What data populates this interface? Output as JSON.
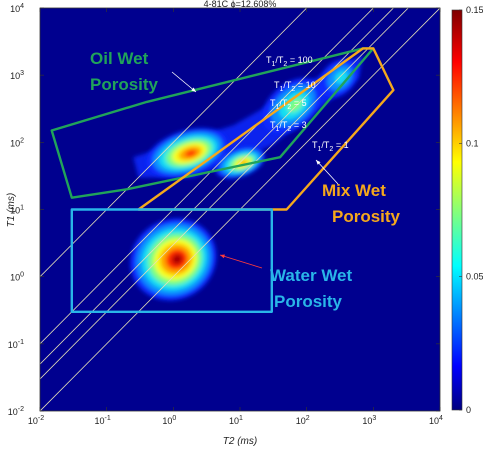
{
  "chart_data": {
    "type": "heatmap",
    "title": "4-81C ϕ=12.608%",
    "xlabel": "T2 (ms)",
    "ylabel": "T1 (ms)",
    "xscale": "log",
    "yscale": "log",
    "xlim": [
      0.01,
      10000
    ],
    "ylim": [
      0.01,
      10000
    ],
    "x_ticks": [
      {
        "value": 0.01,
        "base": "10",
        "exp": "-2"
      },
      {
        "value": 0.1,
        "base": "10",
        "exp": "-1"
      },
      {
        "value": 1,
        "base": "10",
        "exp": "0"
      },
      {
        "value": 10,
        "base": "10",
        "exp": "1"
      },
      {
        "value": 100,
        "base": "10",
        "exp": "2"
      },
      {
        "value": 1000,
        "base": "10",
        "exp": "3"
      },
      {
        "value": 10000,
        "base": "10",
        "exp": "4"
      }
    ],
    "y_ticks": [
      {
        "value": 0.01,
        "base": "10",
        "exp": "-2"
      },
      {
        "value": 0.1,
        "base": "10",
        "exp": "-1"
      },
      {
        "value": 1,
        "base": "10",
        "exp": "0"
      },
      {
        "value": 10,
        "base": "10",
        "exp": "1"
      },
      {
        "value": 100,
        "base": "10",
        "exp": "2"
      },
      {
        "value": 1000,
        "base": "10",
        "exp": "3"
      },
      {
        "value": 10000,
        "base": "10",
        "exp": "4"
      }
    ],
    "colorbar": {
      "range": [
        0,
        0.15
      ],
      "ticks": [
        {
          "value": 0,
          "label": "0"
        },
        {
          "value": 0.05,
          "label": "0.05"
        },
        {
          "value": 0.1,
          "label": "0.1"
        },
        {
          "value": 0.15,
          "label": "0.15"
        }
      ]
    },
    "peaks": [
      {
        "t2": 1.0,
        "t1": 1.8,
        "amplitude": 0.15
      },
      {
        "t2": 1.6,
        "t1": 70,
        "amplitude": 0.12
      },
      {
        "t2": 10,
        "t1": 50,
        "amplitude": 0.1
      },
      {
        "t2": 60,
        "t1": 350,
        "amplitude": 0.05
      },
      {
        "t2": 300,
        "t1": 900,
        "amplitude": 0.03
      }
    ],
    "ratio_lines": [
      {
        "ratio": 100,
        "label_main": "T",
        "label_sub1": "1",
        "label_sep": "/T",
        "label_sub2": "2",
        "label_tail": " = 100"
      },
      {
        "ratio": 10,
        "label_main": "T",
        "label_sub1": "1",
        "label_sep": "/T",
        "label_sub2": "2",
        "label_tail": " = 10"
      },
      {
        "ratio": 5,
        "label_main": "T",
        "label_sub1": "1",
        "label_sep": "/T",
        "label_sub2": "2",
        "label_tail": " = 5"
      },
      {
        "ratio": 3,
        "label_main": "T",
        "label_sub1": "1",
        "label_sep": "/T",
        "label_sub2": "2",
        "label_tail": " = 3"
      },
      {
        "ratio": 1,
        "label_main": "T",
        "label_sub1": "1",
        "label_sep": "/T",
        "label_sub2": "2",
        "label_tail": " = 1"
      }
    ],
    "regions": [
      {
        "name": "Oil Wet Porosity",
        "line1": "Oil Wet",
        "line2": "Porosity",
        "color": "#21a35a",
        "polygon": [
          [
            0.015,
            150
          ],
          [
            0.4,
            400
          ],
          [
            700,
            2500
          ],
          [
            1000,
            2500
          ],
          [
            40,
            60
          ],
          [
            0.2,
            20
          ],
          [
            0.03,
            15
          ]
        ]
      },
      {
        "name": "Mix Wet Porosity",
        "line1": "Mix Wet",
        "line2": "Porosity",
        "color": "#f5a81c",
        "polygon": [
          [
            0.3,
            10
          ],
          [
            700,
            2500
          ],
          [
            1000,
            2500
          ],
          [
            2000,
            600
          ],
          [
            50,
            10
          ]
        ]
      },
      {
        "name": "Water Wet Porosity",
        "line1": "Water Wet",
        "line2": "Porosity",
        "color": "#29b6e8",
        "polygon": [
          [
            0.03,
            0.3
          ],
          [
            0.03,
            10
          ],
          [
            30,
            10
          ],
          [
            30,
            0.3
          ]
        ]
      }
    ]
  }
}
